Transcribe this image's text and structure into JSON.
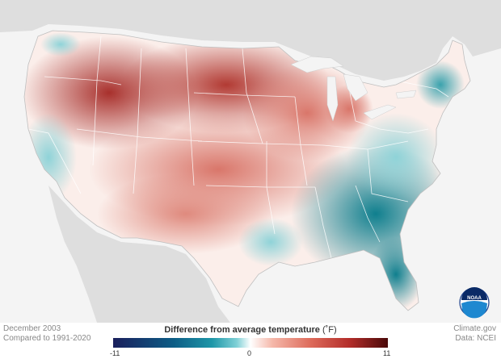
{
  "footer": {
    "period": "December 2003",
    "baseline": "Compared to 1991-2020",
    "source": "Climate.gov",
    "data_source": "Data: NCEI"
  },
  "legend": {
    "title": "Difference from average temperature",
    "unit": "(˚F)",
    "min_label": "-11",
    "mid_label": "0",
    "max_label": "11",
    "range": [
      -11,
      11
    ],
    "colors": [
      "#1a1f5c",
      "#0d5d86",
      "#1e97a8",
      "#7fd0d6",
      "#ffffff",
      "#f5b7a9",
      "#dd6a5a",
      "#b32d2a",
      "#4a0909"
    ]
  },
  "logo": {
    "icon": "noaa-logo-icon",
    "text": "NOAA"
  },
  "map": {
    "region": "Contiguous United States",
    "colors": {
      "land": "#dcdcdc",
      "ocean": "#f4f4f4",
      "warm": "#c9463f",
      "cool": "#1b8e9e"
    }
  }
}
